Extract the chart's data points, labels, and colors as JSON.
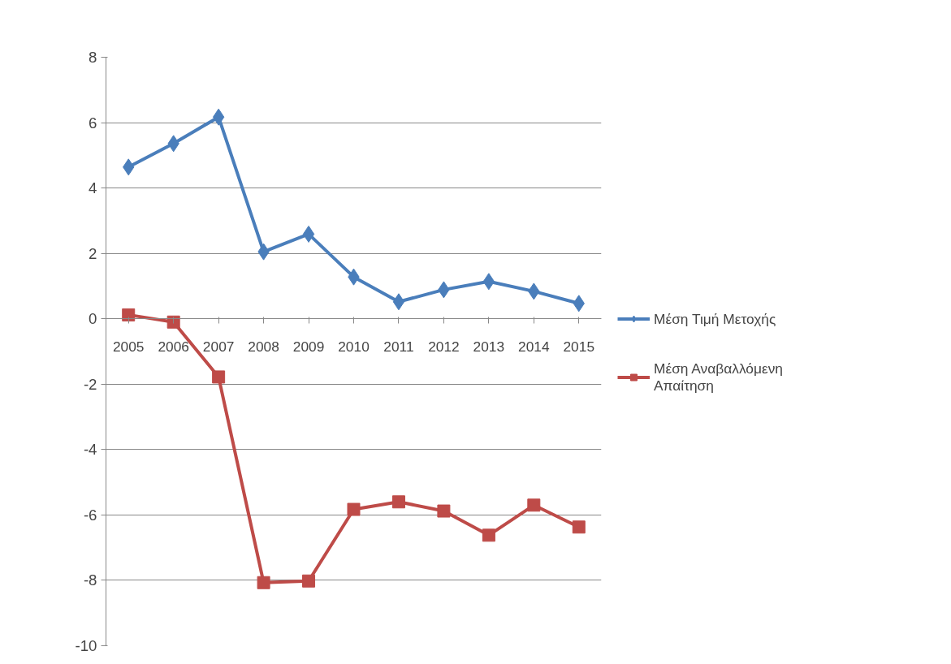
{
  "chart_data": {
    "type": "line",
    "categories": [
      "2005",
      "2006",
      "2007",
      "2008",
      "2009",
      "2010",
      "2011",
      "2012",
      "2013",
      "2014",
      "2015"
    ],
    "series": [
      {
        "name": "Μέση Τιμή Μετοχής",
        "color": "#4a7ebb",
        "marker": "diamond",
        "values": [
          4.64,
          5.36,
          6.17,
          2.05,
          2.59,
          1.28,
          0.52,
          0.89,
          1.14,
          0.84,
          0.47
        ]
      },
      {
        "name": "Μέση Αναβαλλόμενη Απαίτηση",
        "color": "#be4b48",
        "marker": "square",
        "values": [
          0.12,
          -0.1,
          -1.78,
          -8.07,
          -8.02,
          -5.83,
          -5.6,
          -5.88,
          -6.62,
          -5.7,
          -6.37
        ]
      }
    ],
    "ylim": [
      -10,
      8
    ],
    "yticks": [
      -10,
      -8,
      -6,
      -4,
      -2,
      0,
      2,
      4,
      6,
      8
    ],
    "grid": "y",
    "legend": "right",
    "line_style": "solid"
  }
}
